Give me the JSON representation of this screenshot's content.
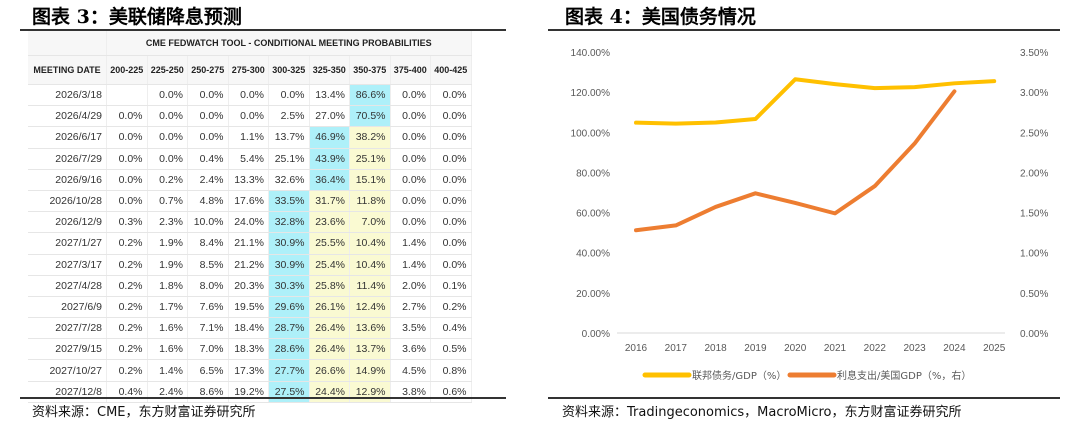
{
  "left": {
    "title": "图表 3：美联储降息预测",
    "source": "资料来源：CME，东方财富证券研究所",
    "table": {
      "caption": "CME FEDWATCH TOOL - CONDITIONAL MEETING PROBABILITIES",
      "headers": [
        "MEETING DATE",
        "200-225",
        "225-250",
        "250-275",
        "275-300",
        "300-325",
        "325-350",
        "350-375",
        "375-400",
        "400-425"
      ],
      "rows": [
        [
          "2026/3/18",
          "",
          "0.0%",
          "0.0%",
          "0.0%",
          "0.0%",
          "13.4%",
          "86.6%",
          "0.0%",
          "0.0%"
        ],
        [
          "2026/4/29",
          "0.0%",
          "0.0%",
          "0.0%",
          "0.0%",
          "2.5%",
          "27.0%",
          "70.5%",
          "0.0%",
          "0.0%"
        ],
        [
          "2026/6/17",
          "0.0%",
          "0.0%",
          "0.0%",
          "1.1%",
          "13.7%",
          "46.9%",
          "38.2%",
          "0.0%",
          "0.0%"
        ],
        [
          "2026/7/29",
          "0.0%",
          "0.0%",
          "0.4%",
          "5.4%",
          "25.1%",
          "43.9%",
          "25.1%",
          "0.0%",
          "0.0%"
        ],
        [
          "2026/9/16",
          "0.0%",
          "0.2%",
          "2.4%",
          "13.3%",
          "32.6%",
          "36.4%",
          "15.1%",
          "0.0%",
          "0.0%"
        ],
        [
          "2026/10/28",
          "0.0%",
          "0.7%",
          "4.8%",
          "17.6%",
          "33.5%",
          "31.7%",
          "11.8%",
          "0.0%",
          "0.0%"
        ],
        [
          "2026/12/9",
          "0.3%",
          "2.3%",
          "10.0%",
          "24.0%",
          "32.8%",
          "23.6%",
          "7.0%",
          "0.0%",
          "0.0%"
        ],
        [
          "2027/1/27",
          "0.2%",
          "1.9%",
          "8.4%",
          "21.1%",
          "30.9%",
          "25.5%",
          "10.4%",
          "1.4%",
          "0.0%"
        ],
        [
          "2027/3/17",
          "0.2%",
          "1.9%",
          "8.5%",
          "21.2%",
          "30.9%",
          "25.4%",
          "10.4%",
          "1.4%",
          "0.0%"
        ],
        [
          "2027/4/28",
          "0.2%",
          "1.8%",
          "8.0%",
          "20.3%",
          "30.3%",
          "25.8%",
          "11.4%",
          "2.0%",
          "0.1%"
        ],
        [
          "2027/6/9",
          "0.2%",
          "1.7%",
          "7.6%",
          "19.5%",
          "29.6%",
          "26.1%",
          "12.4%",
          "2.7%",
          "0.2%"
        ],
        [
          "2027/7/28",
          "0.2%",
          "1.6%",
          "7.1%",
          "18.4%",
          "28.7%",
          "26.4%",
          "13.6%",
          "3.5%",
          "0.4%"
        ],
        [
          "2027/9/15",
          "0.2%",
          "1.6%",
          "7.0%",
          "18.3%",
          "28.6%",
          "26.4%",
          "13.7%",
          "3.6%",
          "0.5%"
        ],
        [
          "2027/10/27",
          "0.2%",
          "1.4%",
          "6.5%",
          "17.3%",
          "27.7%",
          "26.6%",
          "14.9%",
          "4.5%",
          "0.8%"
        ],
        [
          "2027/12/8",
          "0.4%",
          "2.4%",
          "8.6%",
          "19.2%",
          "27.5%",
          "24.4%",
          "12.9%",
          "3.8%",
          "0.6%"
        ]
      ],
      "highlight_colors": {
        "cyan": "#aef0f9",
        "yellow": "#fafad2"
      }
    }
  },
  "right": {
    "title": "图表 4：美国债务情况",
    "source": "资料来源：Tradingeconomics，MacroMicro，东方财富证券研究所"
  },
  "chart_data": {
    "type": "line",
    "categories": [
      "2016",
      "2017",
      "2018",
      "2019",
      "2020",
      "2021",
      "2022",
      "2023",
      "2024",
      "2025"
    ],
    "y_left": {
      "ticks": [
        "0.00%",
        "20.00%",
        "40.00%",
        "60.00%",
        "80.00%",
        "100.00%",
        "120.00%",
        "140.00%"
      ],
      "range": [
        0,
        140
      ]
    },
    "y_right": {
      "ticks": [
        "0.00%",
        "0.50%",
        "1.00%",
        "1.50%",
        "2.00%",
        "2.50%",
        "3.00%",
        "3.50%"
      ],
      "range": [
        0,
        3.5
      ]
    },
    "series": [
      {
        "name": "联邦债务/GDP（%）",
        "axis": "left",
        "color": "#ffc000",
        "values": [
          104.8,
          104.3,
          104.9,
          106.6,
          126.4,
          124.0,
          122.0,
          122.5,
          124.4,
          125.5
        ]
      },
      {
        "name": "利息支出/美国GDP（%，右）",
        "axis": "right",
        "color": "#ed7d31",
        "values": [
          1.28,
          1.34,
          1.57,
          1.74,
          1.62,
          1.49,
          1.83,
          2.36,
          3.01,
          null
        ]
      }
    ],
    "legend": "bottom",
    "grid": false
  }
}
